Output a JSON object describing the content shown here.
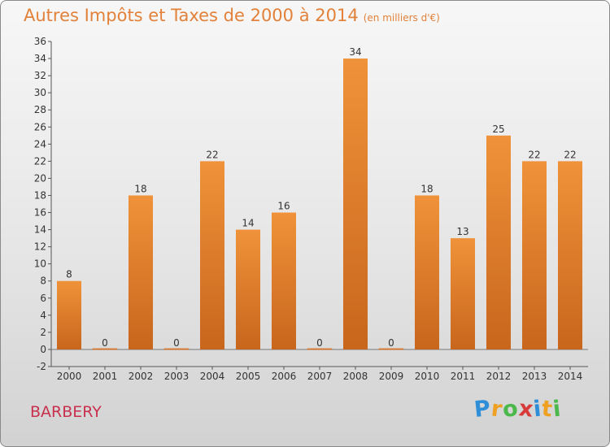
{
  "chart_data": {
    "type": "bar",
    "title": "Autres Impôts et Taxes de 2000 à 2014",
    "subtitle": "(en milliers d'€)",
    "xlabel": "",
    "ylabel": "",
    "categories": [
      "2000",
      "2001",
      "2002",
      "2003",
      "2004",
      "2005",
      "2006",
      "2007",
      "2008",
      "2009",
      "2010",
      "2011",
      "2012",
      "2013",
      "2014"
    ],
    "values": [
      8,
      0,
      18,
      0,
      22,
      14,
      16,
      0,
      34,
      0,
      18,
      13,
      25,
      22,
      22
    ],
    "ylim": [
      -2,
      36
    ],
    "yticks": [
      -2,
      0,
      2,
      4,
      6,
      8,
      10,
      12,
      14,
      16,
      18,
      20,
      22,
      24,
      26,
      28,
      30,
      32,
      34,
      36
    ],
    "grid": false,
    "bar_color": "#f0923a",
    "bar_color_dark": "#c8661c"
  },
  "commune": "BARBERY",
  "logo": {
    "letters": [
      "P",
      "r",
      "o",
      "x",
      "i",
      "t",
      "i"
    ],
    "colors": [
      "#2e8fd8",
      "#f0a020",
      "#4ab84a",
      "#d83a3a",
      "#2e8fd8",
      "#f0a020",
      "#4ab84a"
    ]
  }
}
